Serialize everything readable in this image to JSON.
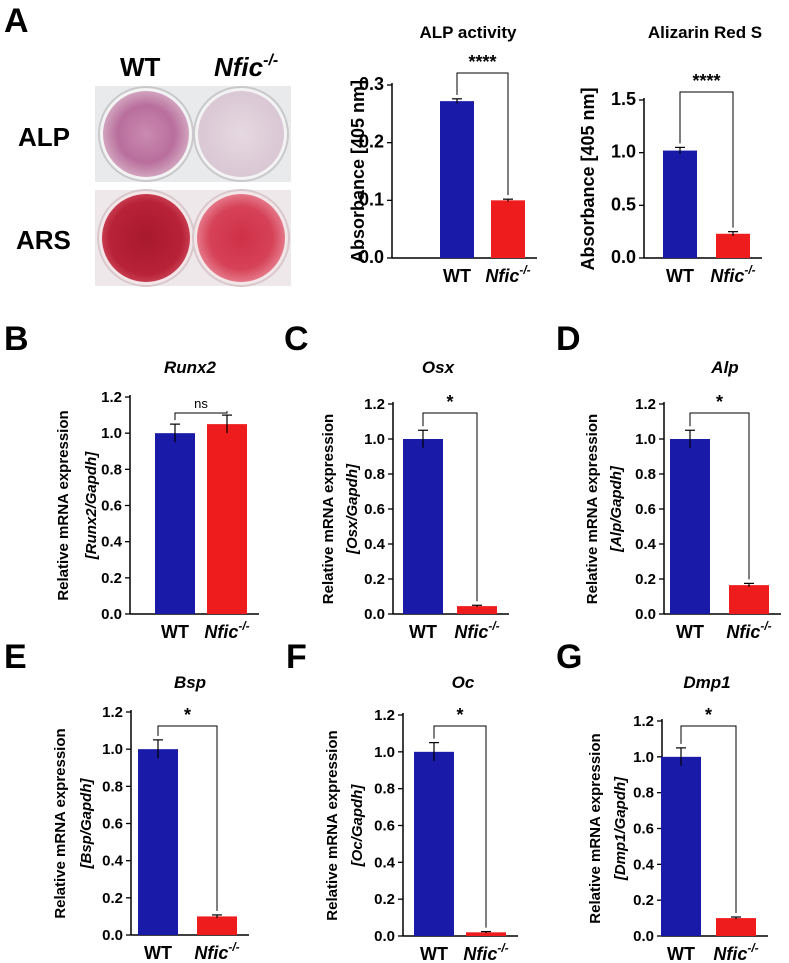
{
  "panel_a": {
    "label": "A",
    "photo": {
      "col_labels": [
        "WT",
        "Nfic"
      ],
      "col_sup": [
        "",
        "-/-"
      ],
      "row_labels": [
        "ALP",
        "ARS"
      ]
    }
  },
  "colors": {
    "wt": "#1a1aa8",
    "ko": "#ee1c1c"
  },
  "chart_data": [
    {
      "id": "alp-activity",
      "panel": "",
      "type": "bar",
      "title": "ALP activity",
      "title_italic": false,
      "ylabel_lines": [
        "Absorbance [405 nm]"
      ],
      "ylim": [
        0,
        0.3
      ],
      "yticks": [
        0.0,
        0.1,
        0.2,
        0.3
      ],
      "tick_labels": [
        "0.0",
        "0.1",
        "0.2",
        "0.3"
      ],
      "categories": [
        "WT",
        "Nfic"
      ],
      "category_sup": [
        "",
        "-/-"
      ],
      "values": [
        0.272,
        0.1
      ],
      "errors": [
        0.004,
        0.002
      ],
      "significance": "****"
    },
    {
      "id": "alizarin-red",
      "panel": "",
      "type": "bar",
      "title": "Alizarin Red S",
      "title_italic": false,
      "ylabel_lines": [
        "Absorbance [405 nm]"
      ],
      "ylim": [
        0,
        1.5
      ],
      "yticks": [
        0.0,
        0.5,
        1.0,
        1.5
      ],
      "tick_labels": [
        "0.0",
        "0.5",
        "1.0",
        "1.5"
      ],
      "categories": [
        "WT",
        "Nfic"
      ],
      "category_sup": [
        "",
        "-/-"
      ],
      "values": [
        1.02,
        0.23
      ],
      "errors": [
        0.03,
        0.02
      ],
      "significance": "****"
    },
    {
      "id": "runx2",
      "panel": "B",
      "type": "bar",
      "title": "Runx2",
      "title_italic": true,
      "ylabel_lines": [
        "Relative mRNA expression",
        "[Runx2/Gapdh]"
      ],
      "ylim": [
        0,
        1.2
      ],
      "yticks": [
        0,
        0.2,
        0.4,
        0.6,
        0.8,
        1.0,
        1.2
      ],
      "tick_labels": [
        "0.0",
        "0.2",
        "0.4",
        "0.6",
        "0.8",
        "1.0",
        "1.2"
      ],
      "categories": [
        "WT",
        "Nfic"
      ],
      "category_sup": [
        "",
        "-/-"
      ],
      "values": [
        1.0,
        1.05
      ],
      "errors": [
        0.05,
        0.05
      ],
      "significance": "ns"
    },
    {
      "id": "osx",
      "panel": "C",
      "type": "bar",
      "title": "Osx",
      "title_italic": true,
      "ylabel_lines": [
        "Relative mRNA expression",
        "[Osx/Gapdh]"
      ],
      "ylim": [
        0,
        1.2
      ],
      "yticks": [
        0,
        0.2,
        0.4,
        0.6,
        0.8,
        1.0,
        1.2
      ],
      "tick_labels": [
        "0.0",
        "0.2",
        "0.4",
        "0.6",
        "0.8",
        "1.0",
        "1.2"
      ],
      "categories": [
        "WT",
        "Nfic"
      ],
      "category_sup": [
        "",
        "-/-"
      ],
      "values": [
        1.0,
        0.045
      ],
      "errors": [
        0.05,
        0.005
      ],
      "significance": "*"
    },
    {
      "id": "alp",
      "panel": "D",
      "type": "bar",
      "title": "Alp",
      "title_italic": true,
      "ylabel_lines": [
        "Relative mRNA expression",
        "[Alp/Gapdh]"
      ],
      "ylim": [
        0,
        1.2
      ],
      "yticks": [
        0,
        0.2,
        0.4,
        0.6,
        0.8,
        1.0,
        1.2
      ],
      "tick_labels": [
        "0.0",
        "0.2",
        "0.4",
        "0.6",
        "0.8",
        "1.0",
        "1.2"
      ],
      "categories": [
        "WT",
        "Nfic"
      ],
      "category_sup": [
        "",
        "-/-"
      ],
      "values": [
        1.0,
        0.165
      ],
      "errors": [
        0.05,
        0.01
      ],
      "significance": "*"
    },
    {
      "id": "bsp",
      "panel": "E",
      "type": "bar",
      "title": "Bsp",
      "title_italic": true,
      "ylabel_lines": [
        "Relative mRNA expression",
        "[Bsp/Gapdh]"
      ],
      "ylim": [
        0,
        1.2
      ],
      "yticks": [
        0,
        0.2,
        0.4,
        0.6,
        0.8,
        1.0,
        1.2
      ],
      "tick_labels": [
        "0.0",
        "0.2",
        "0.4",
        "0.6",
        "0.8",
        "1.0",
        "1.2"
      ],
      "categories": [
        "WT",
        "Nfic"
      ],
      "category_sup": [
        "",
        "-/-"
      ],
      "values": [
        1.0,
        0.1
      ],
      "errors": [
        0.05,
        0.008
      ],
      "significance": "*"
    },
    {
      "id": "oc",
      "panel": "F",
      "type": "bar",
      "title": "Oc",
      "title_italic": true,
      "ylabel_lines": [
        "Relative mRNA expression",
        "[Oc/Gapdh]"
      ],
      "ylim": [
        0,
        1.2
      ],
      "yticks": [
        0,
        0.2,
        0.4,
        0.6,
        0.8,
        1.0,
        1.2
      ],
      "tick_labels": [
        "0.0",
        "0.2",
        "0.4",
        "0.6",
        "0.8",
        "1.0",
        "1.2"
      ],
      "categories": [
        "WT",
        "Nfic"
      ],
      "category_sup": [
        "",
        "-/-"
      ],
      "values": [
        1.0,
        0.02
      ],
      "errors": [
        0.05,
        0.004
      ],
      "significance": "*"
    },
    {
      "id": "dmp1",
      "panel": "G",
      "type": "bar",
      "title": "Dmp1",
      "title_italic": true,
      "ylabel_lines": [
        "Relative mRNA expression",
        "[Dmp1/Gapdh]"
      ],
      "ylim": [
        0,
        1.2
      ],
      "yticks": [
        0,
        0.2,
        0.4,
        0.6,
        0.8,
        1.0,
        1.2
      ],
      "tick_labels": [
        "0.0",
        "0.2",
        "0.4",
        "0.6",
        "0.8",
        "1.0",
        "1.2"
      ],
      "categories": [
        "WT",
        "Nfic"
      ],
      "category_sup": [
        "",
        "-/-"
      ],
      "values": [
        1.0,
        0.1
      ],
      "errors": [
        0.05,
        0.006
      ],
      "significance": "*"
    }
  ]
}
